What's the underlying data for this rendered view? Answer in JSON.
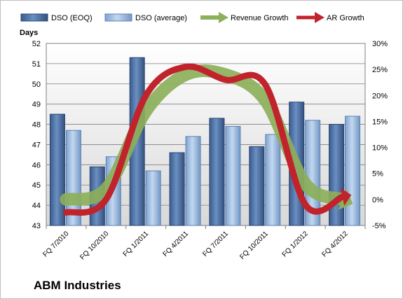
{
  "chart_data": {
    "type": "bar",
    "title": "",
    "company": "ABM Industries",
    "ylabel": "Days",
    "ylim": [
      43,
      52
    ],
    "yticks": [
      43,
      44,
      45,
      46,
      47,
      48,
      49,
      50,
      51,
      52
    ],
    "y2lim": [
      -5,
      30
    ],
    "y2ticks": [
      "-5%",
      "0%",
      "5%",
      "10%",
      "15%",
      "20%",
      "25%",
      "30%"
    ],
    "y2values": [
      -5,
      0,
      5,
      10,
      15,
      20,
      25,
      30
    ],
    "categories": [
      "FQ 7/2010",
      "FQ 10/2010",
      "FQ 1/2011",
      "FQ 4/2011",
      "FQ 7/2011",
      "FQ 10/2011",
      "FQ 1/2012",
      "FQ 4/2012"
    ],
    "series": [
      {
        "name": "DSO (EOQ)",
        "kind": "bar",
        "axis": "left",
        "color": "#4a6fa5",
        "values": [
          48.5,
          45.9,
          51.3,
          46.6,
          48.3,
          46.9,
          49.1,
          48.0
        ]
      },
      {
        "name": "DSO (average)",
        "kind": "bar",
        "axis": "left",
        "color": "#93b5de",
        "values": [
          47.7,
          46.4,
          45.7,
          47.4,
          47.9,
          47.5,
          48.2,
          48.4
        ]
      },
      {
        "name": "Revenue Growth",
        "kind": "line",
        "axis": "right",
        "color": "#8caf5a",
        "values": [
          0,
          2,
          17,
          24,
          24,
          19,
          3,
          0
        ]
      },
      {
        "name": "AR Growth",
        "kind": "line",
        "axis": "right",
        "color": "#c0232c",
        "values": [
          -2.5,
          0,
          20,
          25.5,
          23,
          22,
          -1,
          0.5
        ]
      }
    ],
    "grid": true,
    "legend_position": "top"
  }
}
